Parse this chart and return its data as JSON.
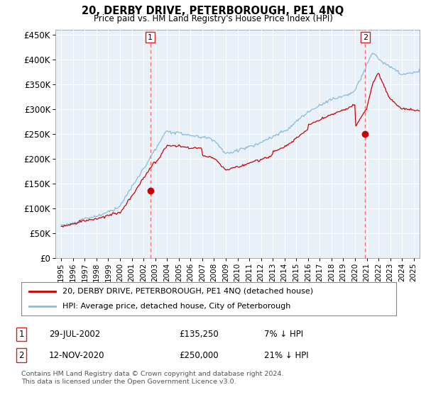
{
  "title": "20, DERBY DRIVE, PETERBOROUGH, PE1 4NQ",
  "subtitle": "Price paid vs. HM Land Registry's House Price Index (HPI)",
  "ylabel_ticks": [
    "£0",
    "£50K",
    "£100K",
    "£150K",
    "£200K",
    "£250K",
    "£300K",
    "£350K",
    "£400K",
    "£450K"
  ],
  "ytick_values": [
    0,
    50000,
    100000,
    150000,
    200000,
    250000,
    300000,
    350000,
    400000,
    450000
  ],
  "ylim": [
    0,
    460000
  ],
  "xlim_start": 1994.5,
  "xlim_end": 2025.5,
  "hpi_color": "#88bbdd",
  "price_color": "#cc0000",
  "vline_color": "#ff6666",
  "transaction1_x": 2002.57,
  "transaction1_y": 135250,
  "transaction2_x": 2020.87,
  "transaction2_y": 250000,
  "legend_line1": "20, DERBY DRIVE, PETERBOROUGH, PE1 4NQ (detached house)",
  "legend_line2": "HPI: Average price, detached house, City of Peterborough",
  "annotation1_date": "29-JUL-2002",
  "annotation1_price": "£135,250",
  "annotation1_hpi": "7% ↓ HPI",
  "annotation2_date": "12-NOV-2020",
  "annotation2_price": "£250,000",
  "annotation2_hpi": "21% ↓ HPI",
  "footer": "Contains HM Land Registry data © Crown copyright and database right 2024.\nThis data is licensed under the Open Government Licence v3.0.",
  "bg_color": "#ffffff",
  "plot_bg_color": "#e8f0f8",
  "grid_color": "#ffffff"
}
